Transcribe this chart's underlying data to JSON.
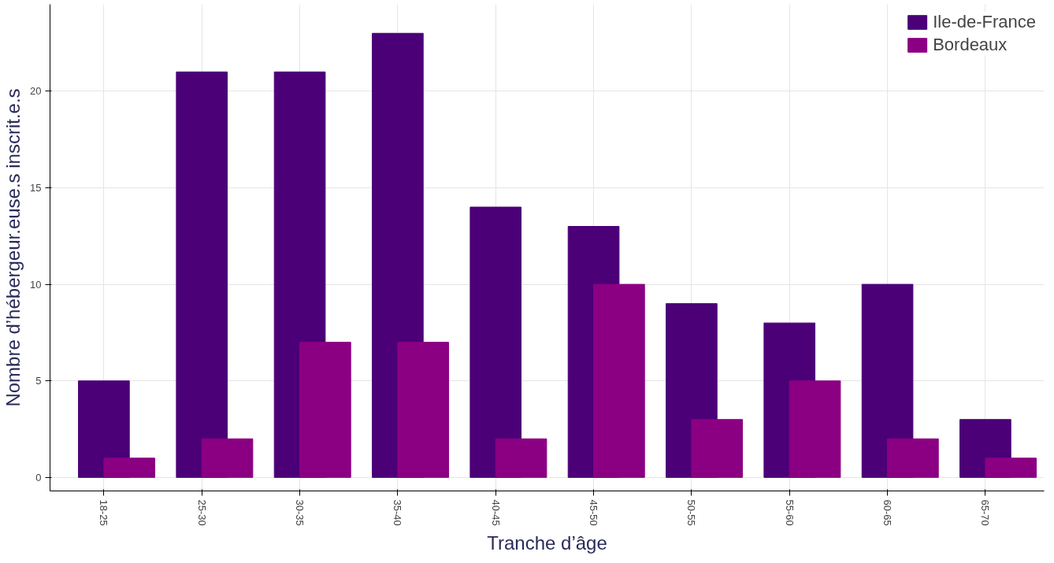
{
  "chart_data": {
    "type": "bar",
    "xlabel": "Tranche d’âge",
    "ylabel": "Nombre d’hébergeur.euse.s inscrit.e.s",
    "categories": [
      "18-25",
      "25-30",
      "30-35",
      "35-40",
      "40-45",
      "45-50",
      "50-55",
      "55-60",
      "60-65",
      "65-70"
    ],
    "series": [
      {
        "name": "Ile-de-France",
        "color": "#4b0077",
        "values": [
          5,
          21,
          21,
          23,
          14,
          13,
          9,
          8,
          10,
          3
        ]
      },
      {
        "name": "Bordeaux",
        "color": "#8b0082",
        "values": [
          1,
          2,
          7,
          7,
          2,
          10,
          3,
          5,
          2,
          1
        ]
      }
    ],
    "ylim": [
      -0.7,
      24.5
    ],
    "yticks": [
      0,
      5,
      10,
      15,
      20
    ],
    "grid": true,
    "legend": "top right"
  }
}
